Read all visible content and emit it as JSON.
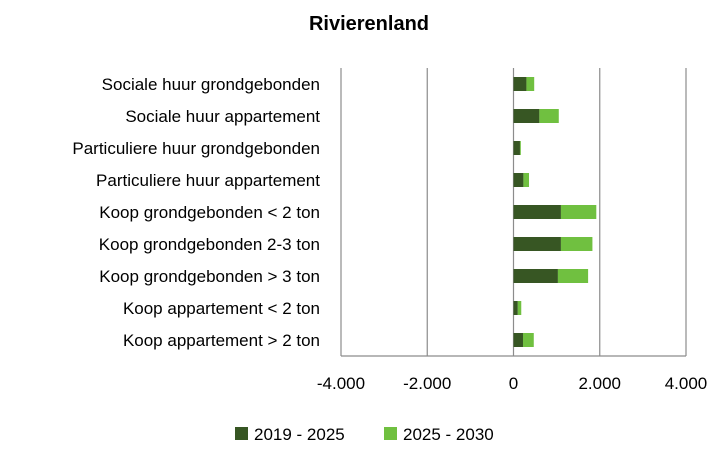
{
  "chart_data": {
    "type": "bar",
    "orientation": "horizontal",
    "stacked": true,
    "title": "Rivierenland",
    "categories": [
      "Sociale huur grondgebonden",
      "Sociale huur appartement",
      "Particuliere huur grondgebonden",
      "Particuliere huur appartement",
      "Koop grondgebonden < 2 ton",
      "Koop grondgebonden 2-3 ton",
      "Koop grondgebonden > 3 ton",
      "Koop appartement < 2 ton",
      "Koop appartement > 2 ton"
    ],
    "series": [
      {
        "name": "2019 - 2025",
        "color": "#375623",
        "values": [
          300,
          600,
          150,
          230,
          1100,
          1100,
          1030,
          100,
          220
        ]
      },
      {
        "name": "2025 - 2030",
        "color": "#70c040",
        "values": [
          180,
          450,
          20,
          130,
          820,
          730,
          700,
          80,
          250
        ]
      }
    ],
    "xlim": [
      -4000,
      4000
    ],
    "xticks": [
      -4000,
      -2000,
      0,
      2000,
      4000
    ],
    "xtick_labels": [
      "-4.000",
      "-2.000",
      "0",
      "2.000",
      "4.000"
    ],
    "grid": "vertical",
    "legend_position": "bottom"
  }
}
